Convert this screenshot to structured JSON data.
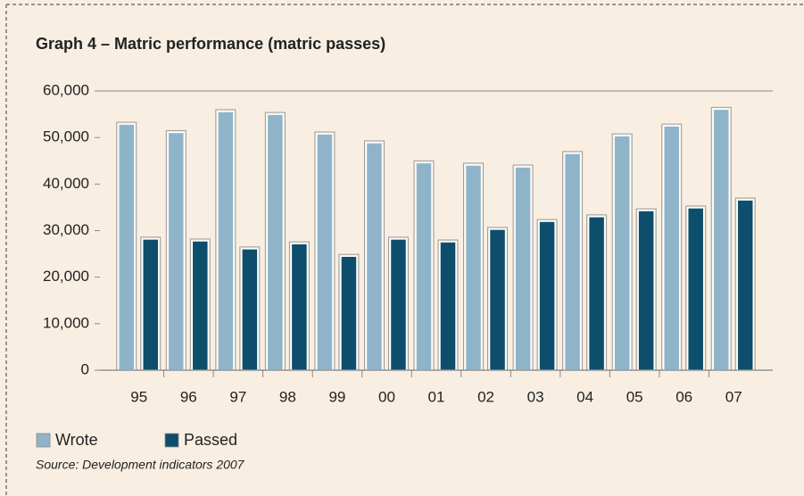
{
  "chart_data": {
    "type": "bar",
    "title": "Graph 4 – Matric performance (matric passes)",
    "categories": [
      "95",
      "96",
      "97",
      "98",
      "99",
      "00",
      "01",
      "02",
      "03",
      "04",
      "05",
      "06",
      "07"
    ],
    "series": [
      {
        "name": "Wrote",
        "color": "#8fb4c9",
        "values": [
          52900,
          51100,
          55600,
          55000,
          50800,
          48900,
          44600,
          44100,
          43700,
          46600,
          50400,
          52500,
          56100
        ]
      },
      {
        "name": "Passed",
        "color": "#0c4e6c",
        "values": [
          28200,
          27800,
          26100,
          27200,
          24500,
          28200,
          27600,
          30300,
          32000,
          33000,
          34300,
          34900,
          36600
        ]
      }
    ],
    "ylim": [
      0,
      60000
    ],
    "yticks": [
      0,
      {
        "value": 10000,
        "label": "10,000"
      },
      {
        "value": 20000,
        "label": "20,000"
      },
      {
        "value": 30000,
        "label": "30,000"
      },
      {
        "value": 40000,
        "label": "40,000"
      },
      {
        "value": 50000,
        "label": "50,000"
      },
      {
        "value": 60000,
        "label": "60,000"
      }
    ],
    "grid": false,
    "source": "Source: Development indicators 2007"
  }
}
